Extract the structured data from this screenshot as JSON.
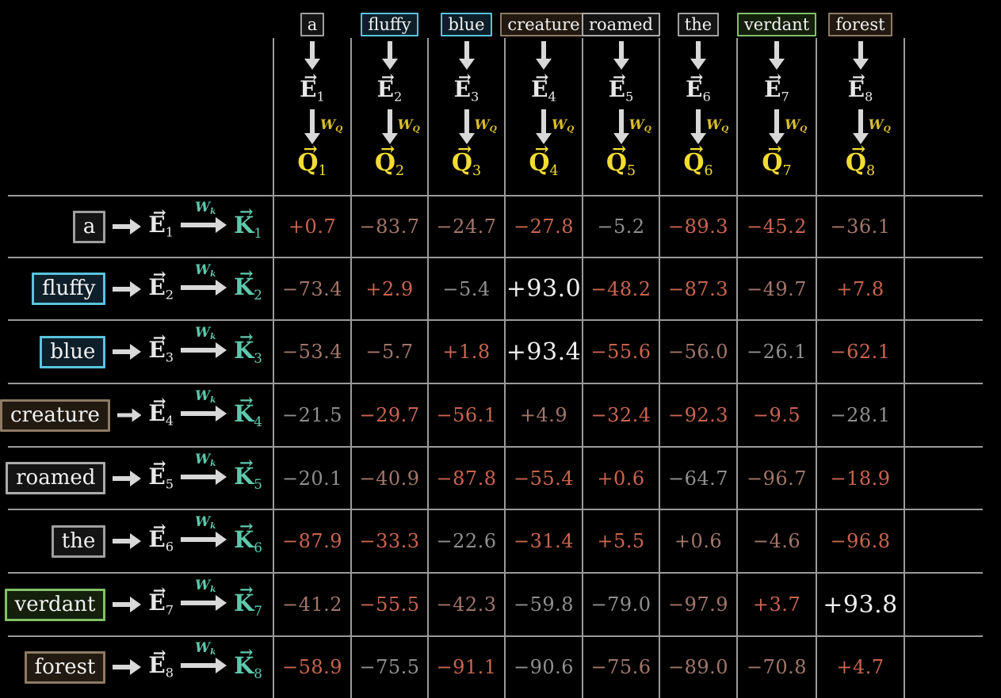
{
  "tokens": [
    {
      "text": "a",
      "border": "#a0a0a0",
      "bg": "#141414"
    },
    {
      "text": "fluffy",
      "border": "#58c4dd",
      "bg": "#0e1f29"
    },
    {
      "text": "blue",
      "border": "#58c4dd",
      "bg": "#0e1f29"
    },
    {
      "text": "creature",
      "border": "#8d7b64",
      "bg": "#221a10"
    },
    {
      "text": "roamed",
      "border": "#ababab",
      "bg": "#141414"
    },
    {
      "text": "the",
      "border": "#a0a0a0",
      "bg": "#141414"
    },
    {
      "text": "verdant",
      "border": "#83c167",
      "bg": "#141f0c"
    },
    {
      "text": "forest",
      "border": "#8d7b64",
      "bg": "#221a10"
    }
  ],
  "subscripts": [
    "1",
    "2",
    "3",
    "4",
    "5",
    "6",
    "7",
    "8"
  ],
  "notation": {
    "embedding_letter": "E",
    "query_letter": "Q",
    "key_letter": "K",
    "weight_letter": "W",
    "wq_subscript": "Q",
    "wk_subscript": "k",
    "vector_arrow": "→"
  },
  "colors": {
    "yellow": "#f2dc33",
    "wq_yellow": "#d9bd2b",
    "teal": "#5fc8ad",
    "embedding_white": "#e8e8e8",
    "arrow_gray": "#d8d8d8",
    "grid_gray": "#9a9a9a",
    "cell_red": "#c96450",
    "cell_rose": "#a1766a",
    "cell_gray": "#8f8f8f",
    "cell_white": "#efefef"
  },
  "matrix": {
    "values": [
      [
        "+0.7",
        "−83.7",
        "−24.7",
        "−27.8",
        "−5.2",
        "−89.3",
        "−45.2",
        "−36.1"
      ],
      [
        "−73.4",
        "+2.9",
        "−5.4",
        "+93.0",
        "−48.2",
        "−87.3",
        "−49.7",
        "+7.8"
      ],
      [
        "−53.4",
        "−5.7",
        "+1.8",
        "+93.4",
        "−55.6",
        "−56.0",
        "−26.1",
        "−62.1"
      ],
      [
        "−21.5",
        "−29.7",
        "−56.1",
        "+4.9",
        "−32.4",
        "−92.3",
        "−9.5",
        "−28.1"
      ],
      [
        "−20.1",
        "−40.9",
        "−87.8",
        "−55.4",
        "+0.6",
        "−64.7",
        "−96.7",
        "−18.9"
      ],
      [
        "−87.9",
        "−33.3",
        "−22.6",
        "−31.4",
        "+5.5",
        "+0.6",
        "−4.6",
        "−96.8"
      ],
      [
        "−41.2",
        "−55.5",
        "−42.3",
        "−59.8",
        "−79.0",
        "−97.9",
        "+3.7",
        "+93.8"
      ],
      [
        "−58.9",
        "−75.5",
        "−91.1",
        "−90.6",
        "−75.6",
        "−89.0",
        "−70.8",
        "+4.7"
      ]
    ],
    "styles": [
      [
        "red",
        "rose",
        "rose",
        "red",
        "gray",
        "red",
        "red",
        "rose"
      ],
      [
        "rose",
        "red",
        "gray",
        "white",
        "red",
        "red",
        "rose",
        "red"
      ],
      [
        "rose",
        "rose",
        "red",
        "white",
        "red",
        "rose",
        "gray",
        "red"
      ],
      [
        "gray",
        "red",
        "red",
        "rose",
        "red",
        "red",
        "red",
        "gray"
      ],
      [
        "gray",
        "rose",
        "red",
        "red",
        "red",
        "gray",
        "rose",
        "red"
      ],
      [
        "red",
        "red",
        "gray",
        "red",
        "red",
        "rose",
        "rose",
        "red"
      ],
      [
        "rose",
        "red",
        "rose",
        "gray",
        "gray",
        "rose",
        "red",
        "white"
      ],
      [
        "red",
        "gray",
        "red",
        "gray",
        "rose",
        "rose",
        "rose",
        "red"
      ]
    ]
  }
}
